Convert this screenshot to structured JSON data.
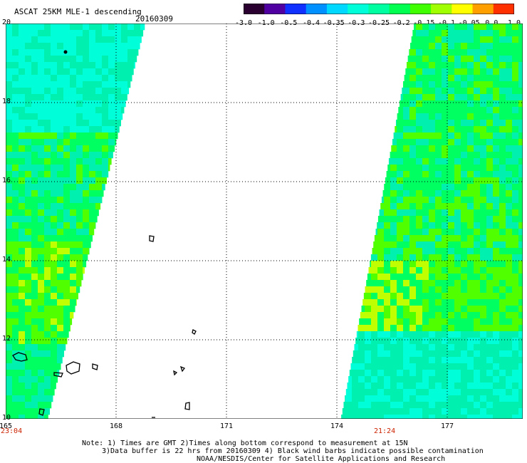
{
  "header": {
    "title": "ASCAT 25KM MLE-1 descending",
    "date": "20160309"
  },
  "colorbar": {
    "ticks": [
      "-3.0",
      "-1.0",
      "-0.5",
      "-0.4",
      "-0.35",
      "-0.3",
      "-0.25",
      "-0.2",
      "-0.15",
      "-0.1",
      "-0.05",
      "0.0",
      "1.0"
    ],
    "colors": [
      "#2a0030",
      "#5000a0",
      "#1030ff",
      "#0090ff",
      "#00d8ff",
      "#00ffd8",
      "#00ffa0",
      "#00ff50",
      "#40ff00",
      "#a0ff00",
      "#ffff00",
      "#ffa000",
      "#ff3000"
    ]
  },
  "map": {
    "lat_labels": [
      "20",
      "18",
      "16",
      "14",
      "12",
      "10"
    ],
    "lon_labels": [
      "165",
      "168",
      "171",
      "174",
      "177"
    ],
    "swath_colors": {
      "cyan": "#00ffd8",
      "teal": "#00f0b0",
      "green": "#00ff60",
      "lime": "#50ff00",
      "yellow": "#c0ff00",
      "orange": "#e0d000"
    }
  },
  "times": {
    "left": "23:04",
    "right": "21:24"
  },
  "notes": {
    "line1": "Note: 1) Times are GMT 2)Times along bottom correspond to measurement at 15N",
    "line2": "3)Data buffer is 22 hrs from 20160309 4) Black wind barbs indicate possible contamination",
    "line3": "NOAA/NESDIS/Center for Satellite Applications and Research"
  }
}
